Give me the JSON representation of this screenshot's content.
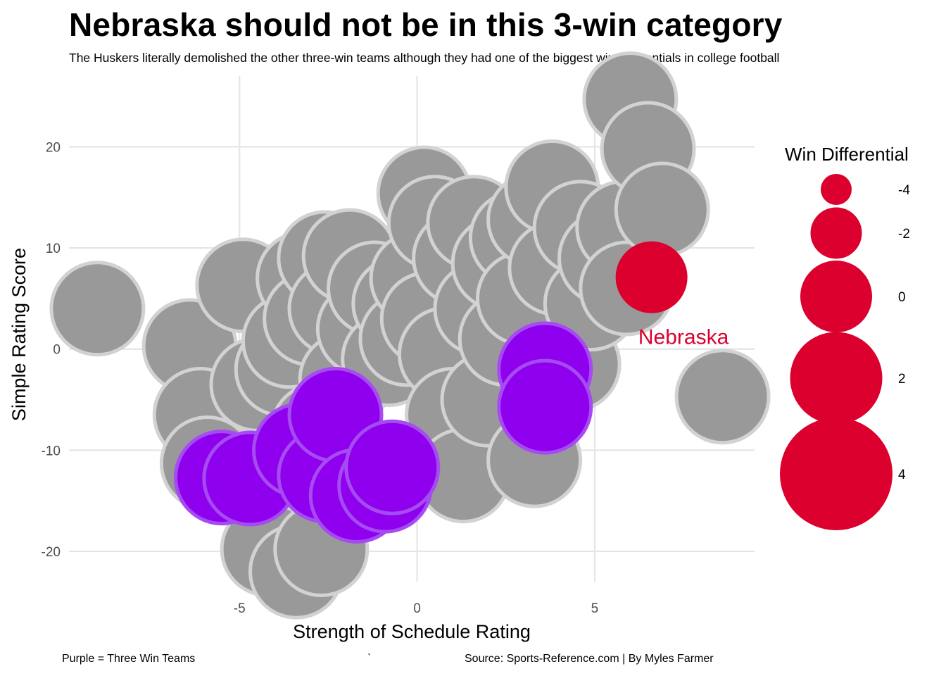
{
  "title": "Nebraska should not be in this 3-win category",
  "subtitle": "The Huskers literally demolished the other three-win teams although they had one of the biggest win differentials in college football",
  "caption_left": "Purple = Three Win Teams",
  "caption_mid": "`",
  "caption_right": "Source: Sports-Reference.com | By Myles Farmer",
  "colors": {
    "other": "#999999",
    "three_win": "#8E00EE",
    "nebraska": "#DC002E",
    "grid": "#E5E5E5"
  },
  "chart_data": {
    "type": "scatter",
    "xlabel": "Strength of Schedule Rating",
    "ylabel": "Simple Rating Score",
    "xlim": [
      -9.8,
      9.5
    ],
    "ylim": [
      -23,
      27
    ],
    "x_ticks": [
      -5,
      0,
      5
    ],
    "y_ticks": [
      -20,
      -10,
      0,
      10,
      20
    ],
    "grid": true,
    "legend": {
      "title": "Win Differential",
      "position": "right",
      "entries": [
        {
          "label": "-4",
          "value": -4
        },
        {
          "label": "-2",
          "value": -2
        },
        {
          "label": "0",
          "value": 0
        },
        {
          "label": "2",
          "value": 2
        },
        {
          "label": "4",
          "value": 4
        }
      ]
    },
    "annotations": [
      {
        "text": "Nebraska",
        "x": 7.5,
        "y": 1.2
      }
    ],
    "points": [
      {
        "x": -9.0,
        "y": 4.0,
        "group": "other",
        "win_diff": 2
      },
      {
        "x": -6.4,
        "y": 0.3,
        "group": "other",
        "win_diff": 2
      },
      {
        "x": -6.1,
        "y": -6.5,
        "group": "other",
        "win_diff": 2
      },
      {
        "x": -5.9,
        "y": -11.3,
        "group": "other",
        "win_diff": 2
      },
      {
        "x": -4.9,
        "y": 6.3,
        "group": "other",
        "win_diff": 2
      },
      {
        "x": -4.5,
        "y": -3.5,
        "group": "other",
        "win_diff": 2
      },
      {
        "x": -4.2,
        "y": -19.8,
        "group": "other",
        "win_diff": 2
      },
      {
        "x": -3.8,
        "y": -2.0,
        "group": "other",
        "win_diff": 2
      },
      {
        "x": -3.6,
        "y": 0.8,
        "group": "other",
        "win_diff": 2
      },
      {
        "x": -3.4,
        "y": -22.0,
        "group": "other",
        "win_diff": 2
      },
      {
        "x": -3.2,
        "y": 7.0,
        "group": "other",
        "win_diff": 2
      },
      {
        "x": -3.0,
        "y": 3.0,
        "group": "other",
        "win_diff": 2
      },
      {
        "x": -2.8,
        "y": -8.0,
        "group": "other",
        "win_diff": 2
      },
      {
        "x": -2.6,
        "y": 9.0,
        "group": "other",
        "win_diff": 2
      },
      {
        "x": -2.7,
        "y": -19.8,
        "group": "other",
        "win_diff": 2
      },
      {
        "x": -2.3,
        "y": 4.0,
        "group": "other",
        "win_diff": 2
      },
      {
        "x": -2.0,
        "y": -3.0,
        "group": "other",
        "win_diff": 2
      },
      {
        "x": -1.9,
        "y": 9.2,
        "group": "other",
        "win_diff": 2
      },
      {
        "x": -1.5,
        "y": 2.0,
        "group": "other",
        "win_diff": 2
      },
      {
        "x": -1.2,
        "y": 6.0,
        "group": "other",
        "win_diff": 2
      },
      {
        "x": -0.8,
        "y": -1.0,
        "group": "other",
        "win_diff": 2
      },
      {
        "x": -0.5,
        "y": 4.5,
        "group": "other",
        "win_diff": 2
      },
      {
        "x": -0.3,
        "y": 1.0,
        "group": "other",
        "win_diff": 2
      },
      {
        "x": 0.2,
        "y": 15.4,
        "group": "other",
        "win_diff": 2
      },
      {
        "x": 0.0,
        "y": 7.0,
        "group": "other",
        "win_diff": 2
      },
      {
        "x": 0.3,
        "y": 3.0,
        "group": "other",
        "win_diff": 2
      },
      {
        "x": 0.5,
        "y": 12.5,
        "group": "other",
        "win_diff": 2
      },
      {
        "x": 0.8,
        "y": -0.5,
        "group": "other",
        "win_diff": 2
      },
      {
        "x": 1.0,
        "y": -6.5,
        "group": "other",
        "win_diff": 2
      },
      {
        "x": 1.2,
        "y": 9.0,
        "group": "other",
        "win_diff": 2
      },
      {
        "x": 1.3,
        "y": -12.5,
        "group": "other",
        "win_diff": 2
      },
      {
        "x": 1.6,
        "y": 12.5,
        "group": "other",
        "win_diff": 2
      },
      {
        "x": 1.8,
        "y": 4.0,
        "group": "other",
        "win_diff": 2
      },
      {
        "x": 2.0,
        "y": -5.0,
        "group": "other",
        "win_diff": 2
      },
      {
        "x": 2.3,
        "y": 8.5,
        "group": "other",
        "win_diff": 2
      },
      {
        "x": 2.5,
        "y": 1.0,
        "group": "other",
        "win_diff": 2
      },
      {
        "x": 2.8,
        "y": 11.0,
        "group": "other",
        "win_diff": 2
      },
      {
        "x": 3.0,
        "y": 5.0,
        "group": "other",
        "win_diff": 2
      },
      {
        "x": 3.3,
        "y": 12.8,
        "group": "other",
        "win_diff": 2
      },
      {
        "x": 3.3,
        "y": -11.0,
        "group": "other",
        "win_diff": 2
      },
      {
        "x": 3.8,
        "y": 16.0,
        "group": "other",
        "win_diff": 2
      },
      {
        "x": 3.9,
        "y": 8.0,
        "group": "other",
        "win_diff": 2
      },
      {
        "x": 4.4,
        "y": -1.5,
        "group": "other",
        "win_diff": 2
      },
      {
        "x": 4.6,
        "y": 12.0,
        "group": "other",
        "win_diff": 2
      },
      {
        "x": 4.9,
        "y": 4.5,
        "group": "other",
        "win_diff": 2
      },
      {
        "x": 5.3,
        "y": 9.0,
        "group": "other",
        "win_diff": 2
      },
      {
        "x": 5.8,
        "y": 12.0,
        "group": "other",
        "win_diff": 2
      },
      {
        "x": 5.9,
        "y": 6.0,
        "group": "other",
        "win_diff": 2
      },
      {
        "x": 6.0,
        "y": 24.7,
        "group": "other",
        "win_diff": 2
      },
      {
        "x": 6.5,
        "y": 19.8,
        "group": "other",
        "win_diff": 2
      },
      {
        "x": 6.9,
        "y": 13.8,
        "group": "other",
        "win_diff": 2
      },
      {
        "x": 8.6,
        "y": -4.7,
        "group": "other",
        "win_diff": 2
      },
      {
        "x": -5.5,
        "y": -12.7,
        "group": "three_win",
        "win_diff": 2
      },
      {
        "x": -4.7,
        "y": -12.8,
        "group": "three_win",
        "win_diff": 2
      },
      {
        "x": -3.3,
        "y": -10.0,
        "group": "three_win",
        "win_diff": 2
      },
      {
        "x": -2.6,
        "y": -12.5,
        "group": "three_win",
        "win_diff": 2
      },
      {
        "x": -2.3,
        "y": -6.5,
        "group": "three_win",
        "win_diff": 2
      },
      {
        "x": -1.7,
        "y": -14.5,
        "group": "three_win",
        "win_diff": 2
      },
      {
        "x": -0.9,
        "y": -13.5,
        "group": "three_win",
        "win_diff": 2
      },
      {
        "x": -0.7,
        "y": -11.7,
        "group": "three_win",
        "win_diff": 2
      },
      {
        "x": 3.6,
        "y": -2.0,
        "group": "three_win",
        "win_diff": 2
      },
      {
        "x": 3.6,
        "y": -5.7,
        "group": "three_win",
        "win_diff": 2
      },
      {
        "x": 6.6,
        "y": 7.1,
        "group": "nebraska",
        "win_diff": 0
      }
    ]
  }
}
